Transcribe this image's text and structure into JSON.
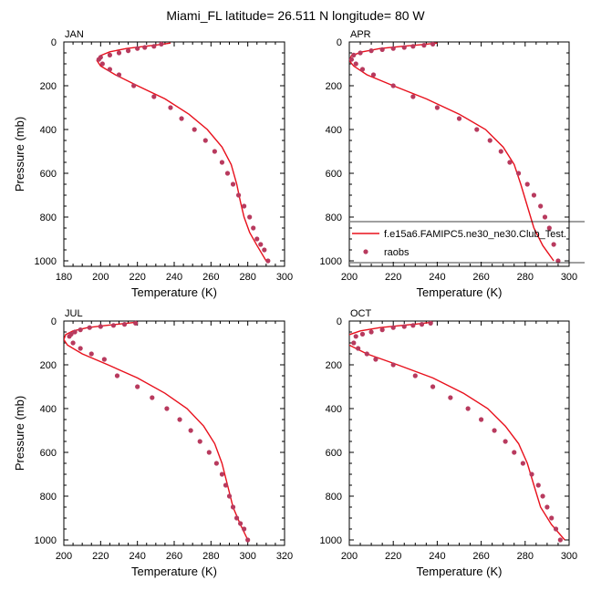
{
  "figure_title": "Miami_FL  latitude= 26.511 N longitude= 80 W",
  "legend": {
    "model_label": "f.e15a6.FAMIPC5.ne30_ne30.Club_Test.",
    "obs_label": "raobs",
    "model_color": "#e8101c",
    "obs_color": "#b83a5e"
  },
  "chart_data": [
    {
      "type": "line",
      "title": "JAN",
      "xlabel": "Temperature (K)",
      "ylabel": "Pressure (mb)",
      "xlim": [
        180,
        300
      ],
      "ylim": [
        1025,
        0
      ],
      "xticks": [
        180,
        200,
        220,
        240,
        260,
        280,
        300
      ],
      "yticks": [
        0,
        200,
        400,
        600,
        800,
        1000
      ],
      "series": [
        {
          "name": "f.e15a6.FAMIPC5.ne30_ne30.Club_Test.",
          "kind": "line",
          "t": [
            238,
            232,
            224,
            214,
            205,
            200,
            198,
            200,
            208,
            220,
            235,
            248,
            258,
            266,
            271,
            274,
            276,
            278,
            281,
            285,
            290
          ],
          "p": [
            5,
            12,
            20,
            30,
            45,
            62,
            85,
            110,
            150,
            200,
            260,
            330,
            400,
            480,
            560,
            650,
            730,
            800,
            870,
            930,
            1000
          ]
        },
        {
          "name": "raobs",
          "kind": "scatter",
          "t": [
            233,
            229,
            224,
            220,
            215,
            210,
            205,
            200,
            199,
            201,
            205,
            210,
            218,
            229,
            238,
            244,
            251,
            257,
            262,
            266,
            269,
            272,
            275,
            278,
            281,
            283,
            285,
            287,
            289,
            291
          ],
          "p": [
            10,
            20,
            25,
            30,
            40,
            50,
            60,
            70,
            80,
            100,
            125,
            150,
            200,
            250,
            300,
            350,
            400,
            450,
            500,
            550,
            600,
            650,
            700,
            750,
            800,
            850,
            900,
            925,
            950,
            1000
          ]
        }
      ]
    },
    {
      "type": "line",
      "title": "APR",
      "xlabel": "Temperature (K)",
      "ylabel": "",
      "xlim": [
        200,
        300
      ],
      "ylim": [
        1025,
        0
      ],
      "xticks": [
        200,
        220,
        240,
        260,
        280,
        300
      ],
      "yticks": [
        0,
        200,
        400,
        600,
        800,
        1000
      ],
      "series": [
        {
          "name": "f.e15a6.FAMIPC5.ne30_ne30.Club_Test.",
          "kind": "line",
          "t": [
            240,
            233,
            224,
            214,
            206,
            201,
            200,
            202,
            208,
            220,
            235,
            250,
            262,
            270,
            275,
            278,
            281,
            284,
            288,
            293
          ],
          "p": [
            5,
            12,
            20,
            30,
            45,
            62,
            85,
            110,
            150,
            200,
            260,
            330,
            400,
            480,
            560,
            650,
            750,
            850,
            930,
            1000
          ]
        },
        {
          "name": "raobs",
          "kind": "scatter",
          "t": [
            238,
            234,
            229,
            225,
            220,
            215,
            210,
            205,
            202,
            201,
            203,
            206,
            211,
            220,
            229,
            240,
            250,
            258,
            264,
            269,
            273,
            277,
            281,
            284,
            287,
            289,
            291,
            293,
            295
          ],
          "p": [
            10,
            15,
            20,
            25,
            30,
            35,
            40,
            50,
            60,
            80,
            100,
            125,
            150,
            200,
            250,
            300,
            350,
            400,
            450,
            500,
            550,
            600,
            650,
            700,
            750,
            800,
            850,
            925,
            1000
          ]
        }
      ]
    },
    {
      "type": "line",
      "title": "JUL",
      "xlabel": "Temperature (K)",
      "ylabel": "Pressure (mb)",
      "xlim": [
        200,
        320
      ],
      "ylim": [
        1025,
        0
      ],
      "xticks": [
        200,
        220,
        240,
        260,
        280,
        300,
        320
      ],
      "yticks": [
        0,
        200,
        400,
        600,
        800,
        1000
      ],
      "series": [
        {
          "name": "f.e15a6.FAMIPC5.ne30_ne30.Club_Test.",
          "kind": "line",
          "t": [
            240,
            232,
            223,
            213,
            205,
            201,
            200,
            202,
            210,
            224,
            240,
            255,
            267,
            276,
            282,
            286,
            289,
            292,
            296,
            300
          ],
          "p": [
            5,
            12,
            20,
            30,
            45,
            62,
            85,
            110,
            150,
            200,
            260,
            330,
            400,
            480,
            560,
            650,
            750,
            850,
            930,
            1000
          ]
        },
        {
          "name": "raobs",
          "kind": "scatter",
          "t": [
            239,
            233,
            227,
            220,
            214,
            209,
            206,
            204,
            203,
            205,
            209,
            215,
            222,
            229,
            240,
            248,
            256,
            263,
            269,
            274,
            279,
            283,
            286,
            288,
            290,
            292,
            294,
            296,
            298,
            300
          ],
          "p": [
            10,
            15,
            20,
            25,
            30,
            40,
            50,
            60,
            70,
            100,
            125,
            150,
            175,
            250,
            300,
            350,
            400,
            450,
            500,
            550,
            600,
            650,
            700,
            750,
            800,
            850,
            900,
            925,
            950,
            1000
          ]
        }
      ]
    },
    {
      "type": "line",
      "title": "OCT",
      "xlabel": "Temperature (K)",
      "ylabel": "",
      "xlim": [
        200,
        300
      ],
      "ylim": [
        1025,
        0
      ],
      "xticks": [
        200,
        220,
        240,
        260,
        280,
        300
      ],
      "yticks": [
        0,
        200,
        400,
        600,
        800,
        1000
      ],
      "series": [
        {
          "name": "f.e15a6.FAMIPC5.ne30_ne30.Club_Test.",
          "kind": "line",
          "t": [
            238,
            232,
            224,
            214,
            205,
            200,
            198,
            200,
            208,
            222,
            238,
            252,
            263,
            271,
            277,
            281,
            284,
            287,
            292,
            298
          ],
          "p": [
            5,
            12,
            20,
            30,
            45,
            62,
            85,
            110,
            150,
            200,
            260,
            330,
            400,
            480,
            560,
            650,
            750,
            850,
            930,
            1000
          ]
        },
        {
          "name": "raobs",
          "kind": "scatter",
          "t": [
            237,
            233,
            229,
            225,
            220,
            215,
            210,
            206,
            203,
            202,
            204,
            208,
            212,
            220,
            230,
            238,
            246,
            254,
            260,
            266,
            271,
            275,
            279,
            283,
            286,
            288,
            290,
            292,
            294,
            296
          ],
          "p": [
            10,
            15,
            20,
            25,
            30,
            40,
            50,
            60,
            70,
            100,
            125,
            150,
            175,
            200,
            250,
            300,
            350,
            400,
            450,
            500,
            550,
            600,
            650,
            700,
            750,
            800,
            850,
            900,
            950,
            1000
          ]
        }
      ]
    }
  ]
}
